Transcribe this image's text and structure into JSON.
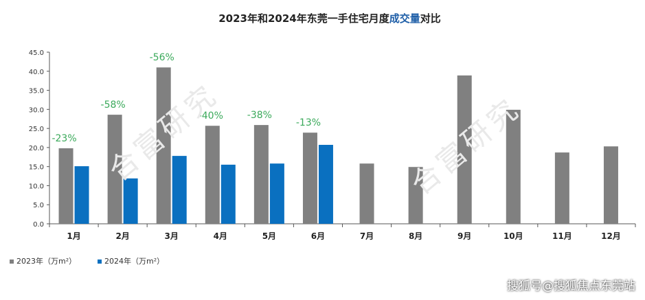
{
  "chart_data": {
    "type": "bar",
    "title_parts": [
      {
        "text": "2023年和2024年东莞一手住宅月度",
        "color": "#222222"
      },
      {
        "text": "成交量",
        "color": "#1f5fa8"
      },
      {
        "text": "对比",
        "color": "#222222"
      }
    ],
    "categories": [
      "1月",
      "2月",
      "3月",
      "4月",
      "5月",
      "6月",
      "7月",
      "8月",
      "9月",
      "10月",
      "11月",
      "12月"
    ],
    "series": [
      {
        "name": "2023年（万m²）",
        "color": "#808080",
        "values": [
          19.8,
          28.6,
          41.0,
          25.7,
          25.9,
          23.9,
          15.8,
          14.9,
          38.9,
          29.9,
          18.7,
          20.3
        ]
      },
      {
        "name": "2024年（万m²）",
        "color": "#0a70c0",
        "values": [
          15.1,
          11.9,
          17.8,
          15.5,
          15.8,
          20.7,
          null,
          null,
          null,
          null,
          null,
          null
        ]
      }
    ],
    "annotations": [
      "-23%",
      "-58%",
      "-56%",
      "-40%",
      "-38%",
      "-13%"
    ],
    "annotation_color": "#3aa95a",
    "yticks": [
      "0.0",
      "5.0",
      "10.0",
      "15.0",
      "20.0",
      "25.0",
      "30.0",
      "35.0",
      "40.0",
      "45.0"
    ],
    "ylim": [
      0,
      45
    ],
    "grid": false,
    "legend_position": "bottom-left"
  },
  "watermark": "合富研究",
  "source": "搜狐号@搜狐焦点东莞站"
}
